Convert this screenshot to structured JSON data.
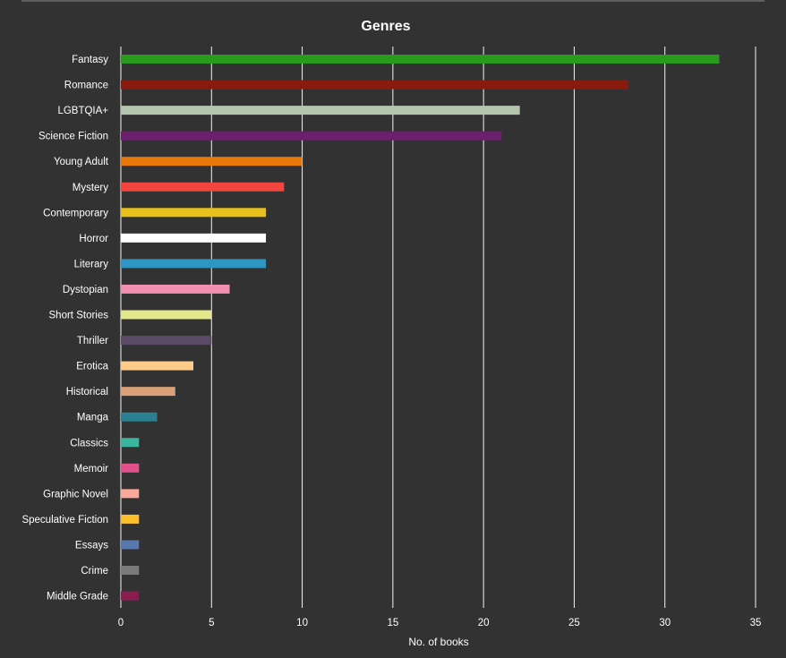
{
  "chart_data": {
    "type": "bar",
    "orientation": "horizontal",
    "title": "Genres",
    "xlabel": "No. of books",
    "ylabel": "",
    "xlim": [
      0,
      35
    ],
    "xticks": [
      0,
      5,
      10,
      15,
      20,
      25,
      30,
      35
    ],
    "grid": true,
    "categories": [
      "Fantasy",
      "Romance",
      "LGBTQIA+",
      "Science Fiction",
      "Young Adult",
      "Mystery",
      "Contemporary",
      "Horror",
      "Literary",
      "Dystopian",
      "Short Stories",
      "Thriller",
      "Erotica",
      "Historical",
      "Manga",
      "Classics",
      "Memoir",
      "Graphic Novel",
      "Speculative Fiction",
      "Essays",
      "Crime",
      "Middle Grade"
    ],
    "values": [
      33,
      28,
      22,
      21,
      10,
      9,
      8,
      8,
      8,
      6,
      5,
      5,
      4,
      3,
      2,
      1,
      1,
      1,
      1,
      1,
      1,
      1
    ],
    "colors": [
      "#2a9a1f",
      "#8b1a0e",
      "#b3c5ad",
      "#6b1f6e",
      "#e8780a",
      "#f2453d",
      "#e8c01a",
      "#ffffff",
      "#2f96c4",
      "#f28fb0",
      "#e3e88a",
      "#5a4a66",
      "#fdcc8a",
      "#d9a07a",
      "#2a8090",
      "#3ab5a0",
      "#e0508a",
      "#fba89a",
      "#fcc12a",
      "#5a78b0",
      "#7a7a7a",
      "#8a1c50"
    ]
  }
}
